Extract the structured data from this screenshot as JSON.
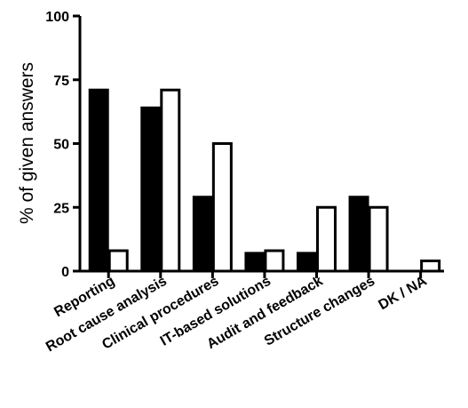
{
  "chart_data": {
    "type": "bar",
    "ylabel": "% of given answers",
    "xlabel": "",
    "ylim": [
      0,
      100
    ],
    "yticks": [
      0,
      25,
      50,
      75,
      100
    ],
    "grid": false,
    "legend": "none",
    "categories": [
      "Reporting",
      "Root cause analysis",
      "Clinical procedures",
      "IT-based solutions",
      "Audit and feedback",
      "Structure changes",
      "DK / NA"
    ],
    "series": [
      {
        "color": "#000000",
        "values": [
          71,
          64,
          29,
          7,
          7,
          29,
          0
        ]
      },
      {
        "color": "#ffffff",
        "values": [
          8,
          71,
          50,
          8,
          25,
          25,
          4
        ]
      }
    ]
  }
}
